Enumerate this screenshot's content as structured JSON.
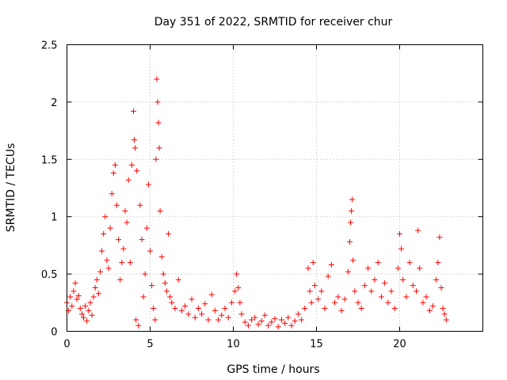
{
  "chart_data": {
    "type": "scatter",
    "title": "Day 351 of 2022, SRMTID for receiver chur",
    "xlabel": "GPS time / hours",
    "ylabel": "SRMTID / TECUs",
    "xlim": [
      0,
      25
    ],
    "ylim": [
      0,
      2.5
    ],
    "xticks": [
      0,
      5,
      10,
      15,
      20
    ],
    "xtick_labels": [
      "0",
      "5",
      "10",
      "15",
      "20"
    ],
    "yticks": [
      0,
      0.5,
      1,
      1.5,
      2,
      2.5
    ],
    "ytick_labels": [
      "0",
      "0.5",
      "1",
      "1.5",
      "2",
      "2.5"
    ],
    "grid": true,
    "marker": "+",
    "color": "#ff0000",
    "series": [
      {
        "name": "SRMTID",
        "points": [
          [
            0.0,
            0.25
          ],
          [
            0.1,
            0.18
          ],
          [
            0.2,
            0.3
          ],
          [
            0.3,
            0.22
          ],
          [
            0.4,
            0.35
          ],
          [
            0.5,
            0.42
          ],
          [
            0.6,
            0.28
          ],
          [
            0.7,
            0.31
          ],
          [
            0.8,
            0.2
          ],
          [
            0.9,
            0.15
          ],
          [
            1.0,
            0.12
          ],
          [
            1.1,
            0.22
          ],
          [
            1.2,
            0.09
          ],
          [
            1.3,
            0.18
          ],
          [
            1.4,
            0.25
          ],
          [
            1.5,
            0.14
          ],
          [
            1.6,
            0.3
          ],
          [
            1.7,
            0.38
          ],
          [
            1.8,
            0.45
          ],
          [
            1.9,
            0.33
          ],
          [
            2.0,
            0.52
          ],
          [
            2.1,
            0.7
          ],
          [
            2.2,
            0.85
          ],
          [
            2.3,
            1.0
          ],
          [
            2.4,
            0.62
          ],
          [
            2.5,
            0.55
          ],
          [
            2.6,
            0.9
          ],
          [
            2.7,
            1.2
          ],
          [
            2.8,
            1.38
          ],
          [
            2.9,
            1.45
          ],
          [
            3.0,
            1.1
          ],
          [
            3.1,
            0.8
          ],
          [
            3.2,
            0.45
          ],
          [
            3.3,
            0.6
          ],
          [
            3.4,
            0.72
          ],
          [
            3.5,
            1.05
          ],
          [
            3.6,
            0.95
          ],
          [
            3.7,
            1.32
          ],
          [
            3.8,
            0.6
          ],
          [
            3.9,
            1.45
          ],
          [
            4.0,
            1.92
          ],
          [
            4.05,
            1.67
          ],
          [
            4.1,
            1.6
          ],
          [
            4.15,
            0.1
          ],
          [
            4.2,
            1.4
          ],
          [
            4.3,
            0.05
          ],
          [
            4.4,
            1.1
          ],
          [
            4.5,
            0.8
          ],
          [
            4.6,
            0.3
          ],
          [
            4.7,
            0.5
          ],
          [
            4.8,
            0.9
          ],
          [
            4.9,
            1.28
          ],
          [
            5.0,
            0.7
          ],
          [
            5.1,
            0.4
          ],
          [
            5.2,
            0.2
          ],
          [
            5.3,
            0.1
          ],
          [
            5.35,
            1.5
          ],
          [
            5.4,
            2.2
          ],
          [
            5.45,
            2.0
          ],
          [
            5.5,
            1.82
          ],
          [
            5.55,
            1.6
          ],
          [
            5.6,
            1.05
          ],
          [
            5.7,
            0.65
          ],
          [
            5.8,
            0.5
          ],
          [
            5.9,
            0.42
          ],
          [
            6.0,
            0.35
          ],
          [
            6.1,
            0.85
          ],
          [
            6.2,
            0.3
          ],
          [
            6.3,
            0.25
          ],
          [
            6.5,
            0.2
          ],
          [
            6.7,
            0.45
          ],
          [
            6.9,
            0.18
          ],
          [
            7.1,
            0.22
          ],
          [
            7.3,
            0.15
          ],
          [
            7.5,
            0.28
          ],
          [
            7.7,
            0.12
          ],
          [
            7.9,
            0.2
          ],
          [
            8.1,
            0.15
          ],
          [
            8.3,
            0.24
          ],
          [
            8.5,
            0.1
          ],
          [
            8.7,
            0.32
          ],
          [
            8.9,
            0.18
          ],
          [
            9.1,
            0.1
          ],
          [
            9.3,
            0.14
          ],
          [
            9.5,
            0.2
          ],
          [
            9.7,
            0.12
          ],
          [
            9.9,
            0.25
          ],
          [
            10.1,
            0.35
          ],
          [
            10.2,
            0.5
          ],
          [
            10.3,
            0.38
          ],
          [
            10.4,
            0.25
          ],
          [
            10.5,
            0.15
          ],
          [
            10.7,
            0.08
          ],
          [
            10.9,
            0.05
          ],
          [
            11.1,
            0.1
          ],
          [
            11.3,
            0.12
          ],
          [
            11.5,
            0.06
          ],
          [
            11.7,
            0.09
          ],
          [
            11.9,
            0.14
          ],
          [
            12.1,
            0.05
          ],
          [
            12.3,
            0.08
          ],
          [
            12.5,
            0.11
          ],
          [
            12.7,
            0.04
          ],
          [
            12.9,
            0.1
          ],
          [
            13.1,
            0.07
          ],
          [
            13.3,
            0.12
          ],
          [
            13.5,
            0.05
          ],
          [
            13.7,
            0.09
          ],
          [
            13.9,
            0.15
          ],
          [
            14.1,
            0.1
          ],
          [
            14.3,
            0.2
          ],
          [
            14.5,
            0.55
          ],
          [
            14.6,
            0.35
          ],
          [
            14.7,
            0.25
          ],
          [
            14.8,
            0.6
          ],
          [
            14.9,
            0.4
          ],
          [
            15.1,
            0.28
          ],
          [
            15.3,
            0.35
          ],
          [
            15.5,
            0.2
          ],
          [
            15.7,
            0.48
          ],
          [
            15.9,
            0.58
          ],
          [
            16.1,
            0.25
          ],
          [
            16.3,
            0.3
          ],
          [
            16.5,
            0.18
          ],
          [
            16.7,
            0.28
          ],
          [
            16.9,
            0.52
          ],
          [
            17.0,
            0.78
          ],
          [
            17.05,
            0.95
          ],
          [
            17.1,
            1.05
          ],
          [
            17.15,
            1.15
          ],
          [
            17.2,
            0.62
          ],
          [
            17.3,
            0.35
          ],
          [
            17.5,
            0.25
          ],
          [
            17.7,
            0.2
          ],
          [
            17.9,
            0.4
          ],
          [
            18.1,
            0.55
          ],
          [
            18.3,
            0.35
          ],
          [
            18.5,
            0.45
          ],
          [
            18.7,
            0.6
          ],
          [
            18.9,
            0.3
          ],
          [
            19.1,
            0.42
          ],
          [
            19.3,
            0.25
          ],
          [
            19.5,
            0.35
          ],
          [
            19.7,
            0.2
          ],
          [
            19.9,
            0.55
          ],
          [
            20.0,
            0.85
          ],
          [
            20.1,
            0.72
          ],
          [
            20.2,
            0.45
          ],
          [
            20.4,
            0.3
          ],
          [
            20.6,
            0.6
          ],
          [
            20.8,
            0.4
          ],
          [
            21.0,
            0.35
          ],
          [
            21.1,
            0.88
          ],
          [
            21.2,
            0.55
          ],
          [
            21.4,
            0.25
          ],
          [
            21.6,
            0.3
          ],
          [
            21.8,
            0.18
          ],
          [
            22.0,
            0.22
          ],
          [
            22.2,
            0.45
          ],
          [
            22.3,
            0.6
          ],
          [
            22.4,
            0.82
          ],
          [
            22.5,
            0.38
          ],
          [
            22.6,
            0.2
          ],
          [
            22.7,
            0.15
          ],
          [
            22.8,
            0.1
          ]
        ]
      }
    ]
  }
}
